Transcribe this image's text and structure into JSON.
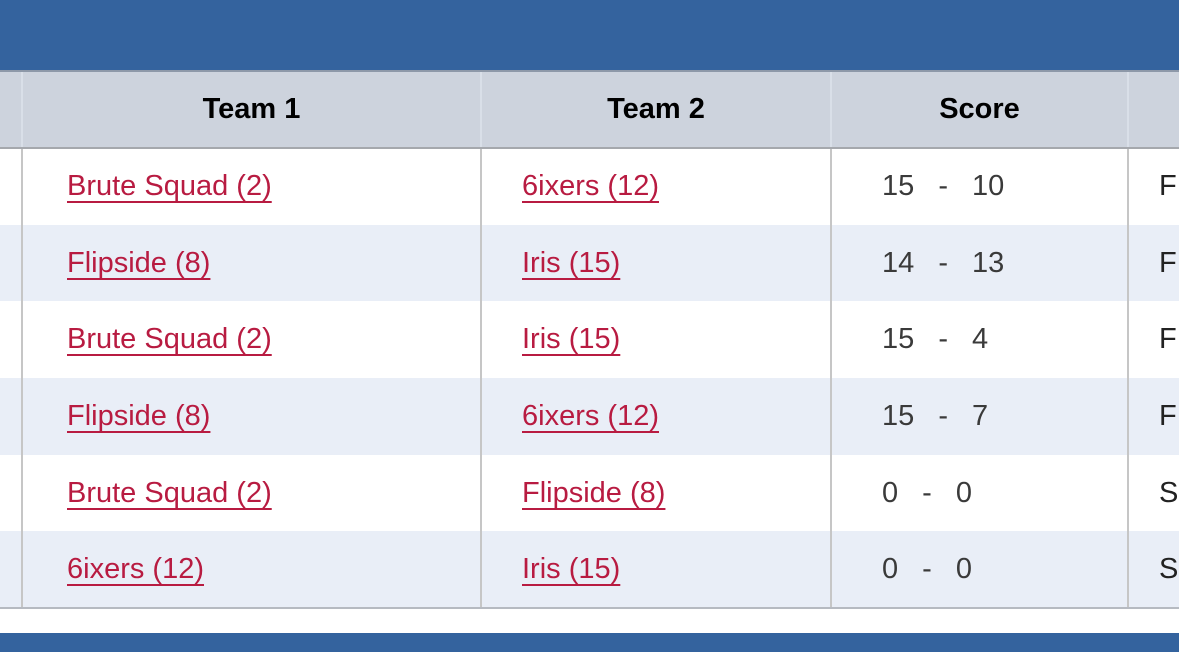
{
  "page": {
    "accent_blue": "#34639e",
    "link_color": "#b81b41"
  },
  "table": {
    "headers": {
      "cut": "",
      "team1": "Team 1",
      "team2": "Team 2",
      "score": "Score",
      "status": ""
    },
    "rows": [
      {
        "team1": "Brute Squad (2)",
        "team2": "6ixers (12)",
        "score": "15 - 10",
        "status": "F"
      },
      {
        "team1": "Flipside (8)",
        "team2": "Iris (15)",
        "score": "14 - 13",
        "status": "F"
      },
      {
        "team1": "Brute Squad (2)",
        "team2": "Iris (15)",
        "score": "15 - 4",
        "status": "F"
      },
      {
        "team1": "Flipside (8)",
        "team2": "6ixers (12)",
        "score": "15 - 7",
        "status": "F"
      },
      {
        "team1": "Brute Squad (2)",
        "team2": "Flipside (8)",
        "score": "0 - 0",
        "status": "S"
      },
      {
        "team1": "6ixers (12)",
        "team2": "Iris (15)",
        "score": "0 - 0",
        "status": "S"
      }
    ]
  }
}
